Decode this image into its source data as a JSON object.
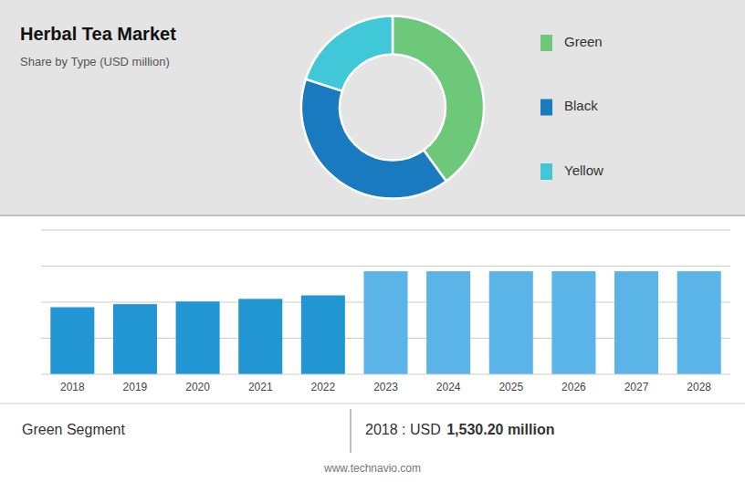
{
  "chart_data": [
    {
      "type": "pie",
      "title": "Herbal Tea Market",
      "subtitle": "Share by Type (USD million)",
      "categories": [
        "Green",
        "Black",
        "Yellow"
      ],
      "values": [
        0.4,
        0.4,
        0.2
      ],
      "colors": [
        "#6dc87a",
        "#1a7abf",
        "#40c8d8"
      ],
      "legend": "right"
    },
    {
      "type": "bar",
      "categories": [
        "2018",
        "2019",
        "2020",
        "2021",
        "2022",
        "2023",
        "2024",
        "2025",
        "2026",
        "2027",
        "2028"
      ],
      "values": [
        1530,
        1600,
        1660,
        1720,
        1800,
        2350,
        2350,
        2350,
        2350,
        2350,
        2350
      ],
      "colors": [
        "#2196d3",
        "#2196d3",
        "#2196d3",
        "#2196d3",
        "#2196d3",
        "#5ab4e8",
        "#5ab4e8",
        "#5ab4e8",
        "#5ab4e8",
        "#5ab4e8",
        "#5ab4e8"
      ],
      "ylim": [
        0,
        3290
      ],
      "yticks": [
        822.5,
        1645,
        2467.5,
        3290
      ],
      "grid": true,
      "tick_labels": "x",
      "annotations": [
        "Green Segment",
        "2018 : USD ",
        "1,530.20 million",
        "www.technavio.com"
      ]
    }
  ]
}
